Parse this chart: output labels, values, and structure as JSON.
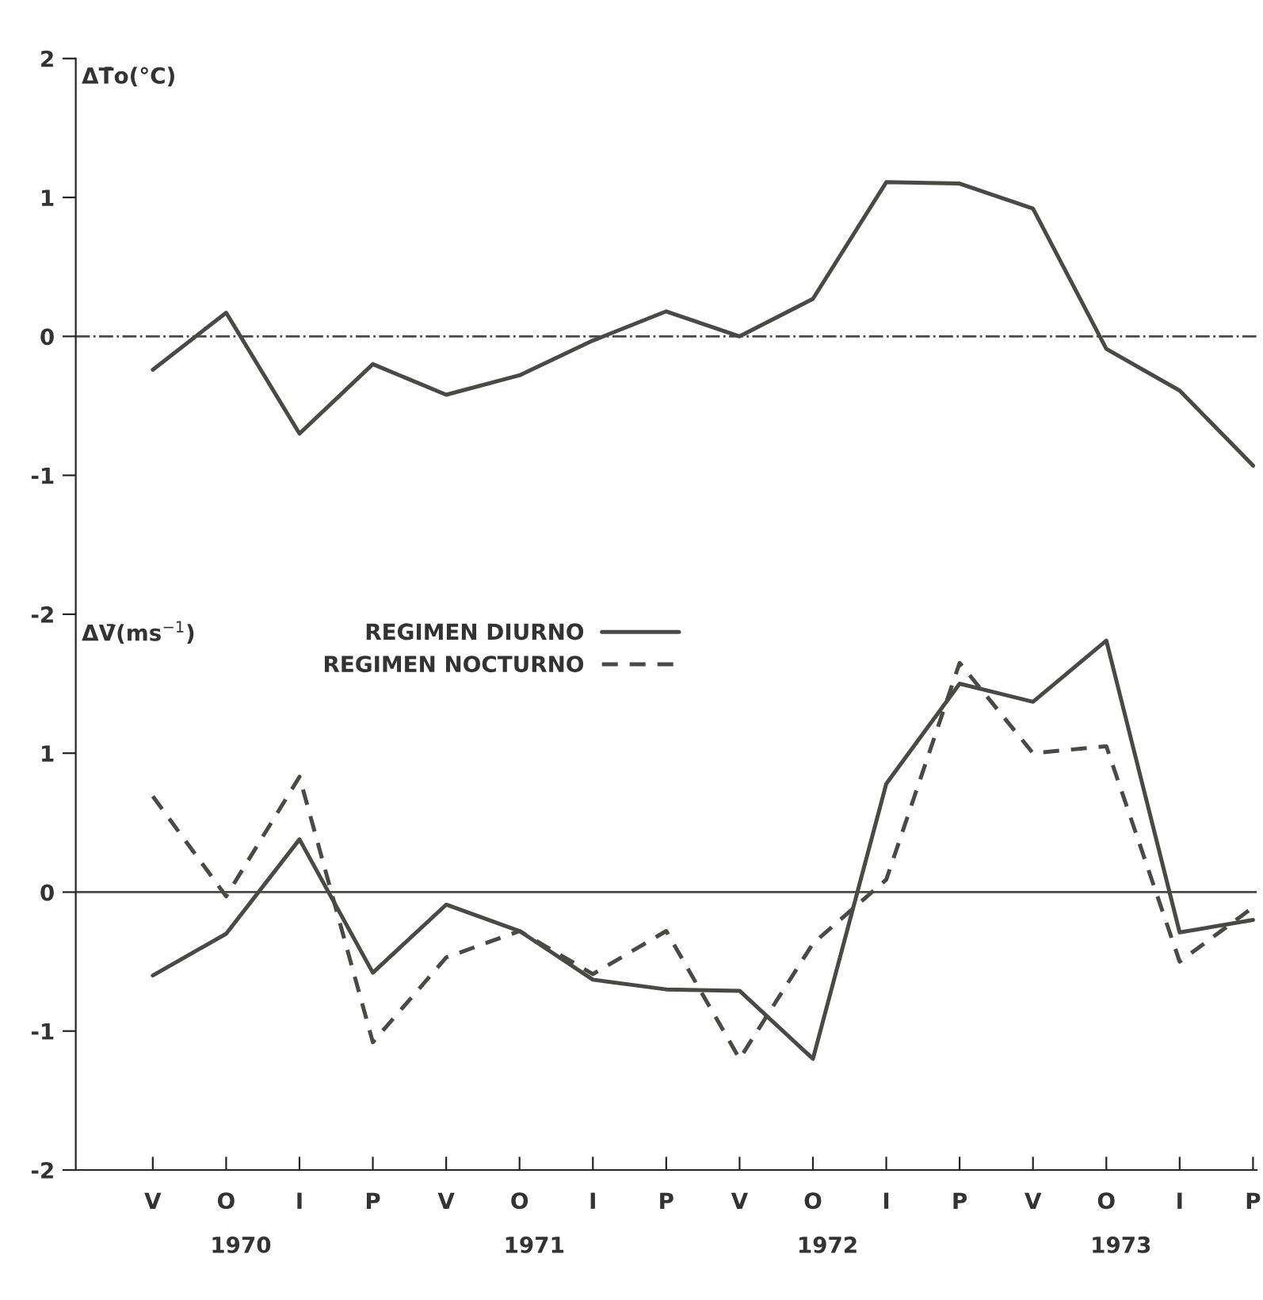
{
  "chart_data": [
    {
      "type": "line",
      "ylabel": "ΔT̄o(°C)",
      "categories": [
        null,
        null,
        null,
        null,
        null,
        null,
        null,
        null,
        null,
        null,
        null,
        null,
        null,
        null,
        null,
        null
      ],
      "tick_labels": "y",
      "ylim": [
        -2,
        2
      ],
      "yticks": [
        -2,
        -1,
        0,
        1,
        2
      ],
      "grid": false,
      "legend": false,
      "marker": "none",
      "series": [
        {
          "color": "#4a4a44",
          "line_style": "solid",
          "values": [
            -0.24,
            0.17,
            -0.7,
            -0.2,
            -0.42,
            -0.28,
            -0.03,
            0.18,
            0.0,
            0.27,
            1.11,
            1.1,
            0.92,
            -0.09,
            -0.39,
            -0.93
          ]
        }
      ],
      "ref_lines": [
        {
          "axis": "y",
          "value": 0,
          "color": "#4a4a44",
          "line_style": "dashdot"
        }
      ]
    },
    {
      "type": "line",
      "ylabel": "ΔV̄(ms$^{−1}$)",
      "categories": [
        "V",
        "O",
        "I",
        "P",
        "V",
        "O",
        "I",
        "P",
        "V",
        "O",
        "I",
        "P",
        "V",
        "O",
        "I",
        "P"
      ],
      "ylim": [
        -2,
        2
      ],
      "yticks": [
        -2,
        -1,
        0,
        1
      ],
      "grid": false,
      "legend": "top",
      "marker": "none",
      "series": [
        {
          "name": "REGIMEN DIURNO",
          "color": "#4a4a44",
          "line_style": "solid",
          "values": [
            -0.6,
            -0.3,
            0.38,
            -0.58,
            -0.09,
            -0.28,
            -0.63,
            -0.7,
            -0.71,
            -1.2,
            0.78,
            1.5,
            1.37,
            1.81,
            -0.29,
            -0.2
          ]
        },
        {
          "name": "REGIMEN NOCTURNO",
          "color": "#4a4a44",
          "line_style": "dashed",
          "values": [
            0.69,
            -0.03,
            0.83,
            -1.08,
            -0.47,
            -0.28,
            -0.59,
            -0.28,
            -1.2,
            -0.37,
            0.09,
            1.65,
            1.0,
            1.05,
            -0.5,
            -0.11
          ]
        }
      ],
      "ref_lines": [
        {
          "axis": "y",
          "value": 0,
          "color": "#4a4a44",
          "line_style": "solid"
        }
      ],
      "annotations": [
        "1970",
        "1971",
        "1972",
        "1973"
      ]
    }
  ]
}
